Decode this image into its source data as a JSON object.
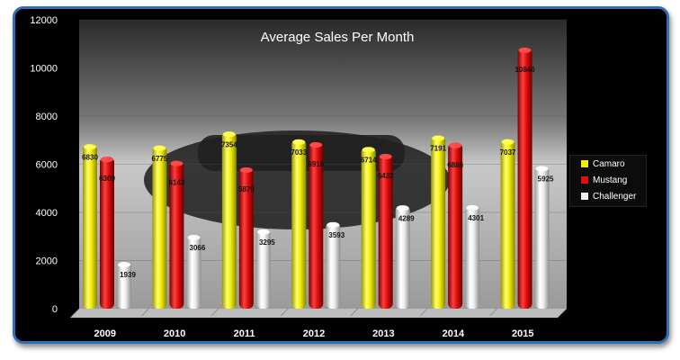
{
  "chart_data": {
    "type": "bar",
    "title": "Average Sales Per Month",
    "xlabel": "",
    "ylabel": "",
    "categories": [
      "2009",
      "2010",
      "2011",
      "2012",
      "2013",
      "2014",
      "2015"
    ],
    "ylim": [
      0,
      12000
    ],
    "yticks": [
      0,
      2000,
      4000,
      6000,
      8000,
      10000,
      12000
    ],
    "series": [
      {
        "name": "Camaro",
        "values": [
          6830,
          6775,
          7354,
          7033,
          6714,
          7191,
          7037
        ],
        "color": "#f2ee0a"
      },
      {
        "name": "Mustang",
        "values": [
          6309,
          6143,
          5870,
          6916,
          6432,
          6886,
          10846
        ],
        "color": "#e01010"
      },
      {
        "name": "Challenger",
        "values": [
          1939,
          3066,
          3295,
          3593,
          4289,
          4301,
          5925
        ],
        "color": "#efefef"
      }
    ],
    "grid": true,
    "legend": "right"
  }
}
